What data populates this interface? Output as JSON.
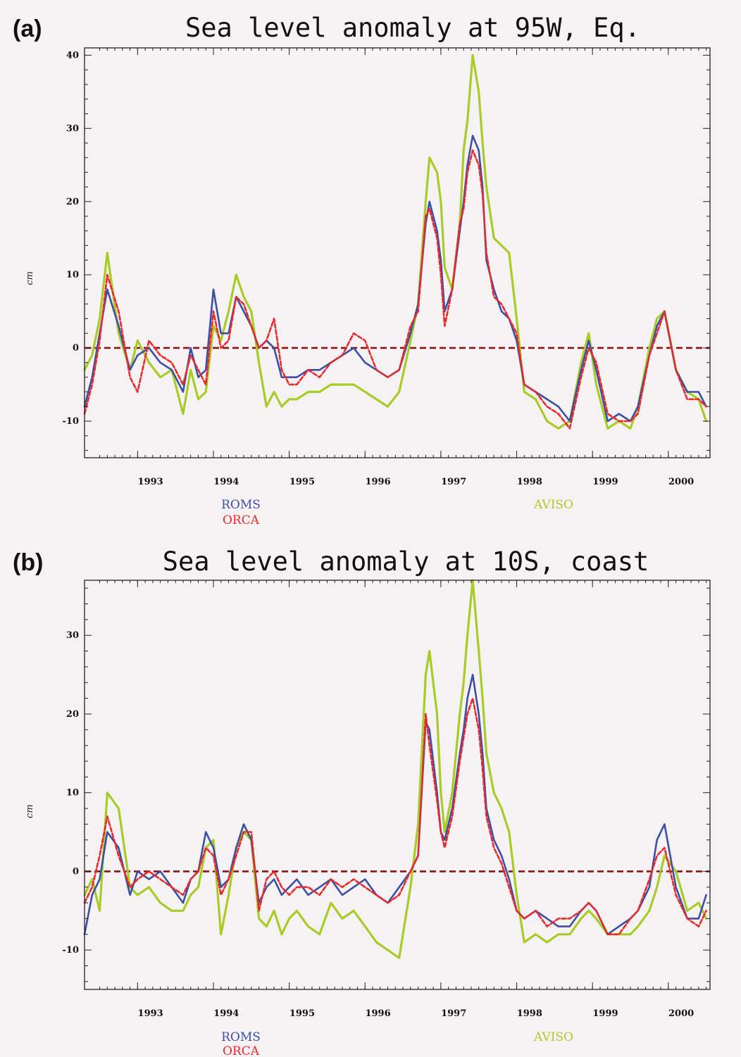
{
  "chart_data": [
    {
      "type": "line",
      "panel_label": "(a)",
      "title": "Sea level anomaly at 95W, Eq.",
      "xlabel": "",
      "ylabel": "cm",
      "xlim": [
        1992.3,
        2000.55
      ],
      "ylim": [
        -15,
        41
      ],
      "yticks": [
        -10,
        0,
        10,
        20,
        30,
        40
      ],
      "xticks": [
        1993,
        1994,
        1995,
        1996,
        1997,
        1998,
        1999,
        2000
      ],
      "grid": false,
      "legend_left": [
        "ROMS",
        "ORCA"
      ],
      "legend_right": [
        "AVISO"
      ],
      "reference_line": 0,
      "series": [
        {
          "name": "AVISO",
          "color": "#a8cc26",
          "x": [
            1992.3,
            1992.4,
            1992.5,
            1992.6,
            1992.75,
            1992.9,
            1993.0,
            1993.15,
            1993.3,
            1993.45,
            1993.6,
            1993.7,
            1993.8,
            1993.9,
            1994.0,
            1994.1,
            1994.2,
            1994.3,
            1994.4,
            1994.5,
            1994.6,
            1994.7,
            1994.8,
            1994.9,
            1995.0,
            1995.1,
            1995.25,
            1995.4,
            1995.55,
            1995.7,
            1995.85,
            1996.0,
            1996.15,
            1996.3,
            1996.45,
            1996.6,
            1996.7,
            1996.8,
            1996.85,
            1996.95,
            1997.0,
            1997.05,
            1997.15,
            1997.25,
            1997.3,
            1997.35,
            1997.42,
            1997.5,
            1997.55,
            1997.6,
            1997.7,
            1997.8,
            1997.9,
            1998.0,
            1998.1,
            1998.25,
            1998.4,
            1998.55,
            1998.7,
            1998.85,
            1998.95,
            1999.05,
            1999.2,
            1999.35,
            1999.5,
            1999.6,
            1999.75,
            1999.85,
            1999.95,
            2000.1,
            2000.25,
            2000.4,
            2000.5
          ],
          "values": [
            -3,
            -1,
            4,
            13,
            2,
            -3,
            1,
            -2,
            -4,
            -3,
            -9,
            -3,
            -7,
            -6,
            3,
            1,
            5,
            10,
            7,
            5,
            -2,
            -8,
            -6,
            -8,
            -7,
            -7,
            -6,
            -6,
            -5,
            -5,
            -5,
            -6,
            -7,
            -8,
            -6,
            1,
            6,
            20,
            26,
            24,
            20,
            11,
            8,
            17,
            27,
            31,
            40,
            35,
            28,
            22,
            15,
            14,
            13,
            4,
            -6,
            -7,
            -10,
            -11,
            -10,
            -2,
            2,
            -5,
            -11,
            -10,
            -11,
            -8,
            0,
            4,
            5,
            -3,
            -6,
            -7,
            -10
          ]
        },
        {
          "name": "ROMS",
          "color": "#3a4fa6",
          "x": [
            1992.3,
            1992.4,
            1992.5,
            1992.6,
            1992.75,
            1992.9,
            1993.0,
            1993.15,
            1993.3,
            1993.45,
            1993.6,
            1993.7,
            1993.8,
            1993.9,
            1994.0,
            1994.1,
            1994.2,
            1994.3,
            1994.4,
            1994.5,
            1994.6,
            1994.7,
            1994.8,
            1994.9,
            1995.0,
            1995.1,
            1995.25,
            1995.4,
            1995.55,
            1995.7,
            1995.85,
            1996.0,
            1996.15,
            1996.3,
            1996.45,
            1996.6,
            1996.7,
            1996.8,
            1996.85,
            1996.95,
            1997.0,
            1997.05,
            1997.15,
            1997.25,
            1997.3,
            1997.35,
            1997.42,
            1997.5,
            1997.55,
            1997.6,
            1997.7,
            1997.8,
            1997.9,
            1998.0,
            1998.1,
            1998.25,
            1998.4,
            1998.55,
            1998.7,
            1998.85,
            1998.95,
            1999.05,
            1999.2,
            1999.35,
            1999.5,
            1999.6,
            1999.75,
            1999.85,
            1999.95,
            2000.1,
            2000.25,
            2000.4,
            2000.5
          ],
          "values": [
            -8,
            -4,
            2,
            8,
            3,
            -3,
            -1,
            0,
            -2,
            -3,
            -6,
            0,
            -4,
            -3,
            8,
            2,
            2,
            7,
            5,
            3,
            0,
            1,
            0,
            -4,
            -4,
            -4,
            -3,
            -3,
            -2,
            -1,
            0,
            -2,
            -3,
            -4,
            -3,
            2,
            6,
            17,
            20,
            16,
            12,
            5,
            8,
            16,
            20,
            25,
            29,
            27,
            22,
            12,
            8,
            5,
            4,
            1,
            -5,
            -6,
            -7,
            -8,
            -10,
            -3,
            1,
            -3,
            -10,
            -9,
            -10,
            -8,
            -1,
            3,
            5,
            -3,
            -6,
            -6,
            -8
          ]
        },
        {
          "name": "ORCA",
          "color": "#e82a2a",
          "x": [
            1992.3,
            1992.4,
            1992.5,
            1992.6,
            1992.75,
            1992.9,
            1993.0,
            1993.15,
            1993.3,
            1993.45,
            1993.6,
            1993.7,
            1993.8,
            1993.9,
            1994.0,
            1994.1,
            1994.2,
            1994.3,
            1994.4,
            1994.5,
            1994.6,
            1994.7,
            1994.8,
            1994.9,
            1995.0,
            1995.1,
            1995.25,
            1995.4,
            1995.55,
            1995.7,
            1995.85,
            1996.0,
            1996.15,
            1996.3,
            1996.45,
            1996.6,
            1996.7,
            1996.8,
            1996.85,
            1996.95,
            1997.0,
            1997.05,
            1997.15,
            1997.25,
            1997.3,
            1997.35,
            1997.42,
            1997.5,
            1997.55,
            1997.6,
            1997.7,
            1997.8,
            1997.9,
            1998.0,
            1998.1,
            1998.25,
            1998.4,
            1998.55,
            1998.7,
            1998.85,
            1998.95,
            1999.05,
            1999.2,
            1999.35,
            1999.5,
            1999.6,
            1999.75,
            1999.85,
            1999.95,
            2000.1,
            2000.25,
            2000.4,
            2000.5
          ],
          "values": [
            -9,
            -5,
            1,
            10,
            5,
            -4,
            -6,
            1,
            -1,
            -2,
            -5,
            -1,
            -3,
            -5,
            5,
            0,
            1,
            7,
            6,
            3,
            0,
            1,
            4,
            -3,
            -5,
            -5,
            -3,
            -4,
            -2,
            -1,
            2,
            1,
            -3,
            -4,
            -3,
            3,
            5,
            18,
            19,
            15,
            10,
            3,
            8,
            17,
            19,
            24,
            27,
            25,
            21,
            13,
            7,
            6,
            4,
            2,
            -5,
            -6,
            -8,
            -9,
            -11,
            -4,
            0,
            -2,
            -9,
            -10,
            -10,
            -9,
            -1,
            2,
            5,
            -3,
            -7,
            -7,
            -8
          ]
        }
      ]
    },
    {
      "type": "line",
      "panel_label": "(b)",
      "title": "Sea level anomaly at 10S, coast",
      "xlabel": "",
      "ylabel": "cm",
      "xlim": [
        1992.3,
        2000.55
      ],
      "ylim": [
        -15,
        37
      ],
      "yticks": [
        -10,
        0,
        10,
        20,
        30
      ],
      "xticks": [
        1993,
        1994,
        1995,
        1996,
        1997,
        1998,
        1999,
        2000
      ],
      "grid": false,
      "legend_left": [
        "ROMS",
        "ORCA"
      ],
      "legend_right": [
        "AVISO"
      ],
      "reference_line": 0,
      "series": [
        {
          "name": "AVISO",
          "color": "#a8cc26",
          "x": [
            1992.3,
            1992.4,
            1992.5,
            1992.6,
            1992.75,
            1992.9,
            1993.0,
            1993.15,
            1993.3,
            1993.45,
            1993.6,
            1993.7,
            1993.8,
            1993.9,
            1994.0,
            1994.1,
            1994.2,
            1994.3,
            1994.4,
            1994.5,
            1994.6,
            1994.7,
            1994.8,
            1994.9,
            1995.0,
            1995.1,
            1995.25,
            1995.4,
            1995.55,
            1995.7,
            1995.85,
            1996.0,
            1996.15,
            1996.3,
            1996.45,
            1996.6,
            1996.7,
            1996.8,
            1996.85,
            1996.95,
            1997.0,
            1997.05,
            1997.15,
            1997.25,
            1997.3,
            1997.35,
            1997.42,
            1997.5,
            1997.55,
            1997.6,
            1997.7,
            1997.8,
            1997.9,
            1998.0,
            1998.1,
            1998.25,
            1998.4,
            1998.55,
            1998.7,
            1998.85,
            1998.95,
            1999.05,
            1999.2,
            1999.35,
            1999.5,
            1999.6,
            1999.75,
            1999.85,
            1999.95,
            2000.1,
            2000.25,
            2000.4,
            2000.5
          ],
          "values": [
            -3,
            -1,
            -5,
            10,
            8,
            -2,
            -3,
            -2,
            -4,
            -5,
            -5,
            -3,
            -2,
            3,
            4,
            -8,
            -3,
            3,
            5,
            4,
            -6,
            -7,
            -5,
            -8,
            -6,
            -5,
            -7,
            -8,
            -4,
            -6,
            -5,
            -7,
            -9,
            -10,
            -11,
            -2,
            6,
            25,
            28,
            20,
            10,
            5,
            10,
            20,
            24,
            30,
            37,
            28,
            22,
            15,
            10,
            8,
            5,
            -3,
            -9,
            -8,
            -9,
            -8,
            -8,
            -6,
            -5,
            -6,
            -8,
            -8,
            -8,
            -7,
            -5,
            -2,
            2,
            0,
            -5,
            -4,
            -6
          ]
        },
        {
          "name": "ROMS",
          "color": "#3a4fa6",
          "x": [
            1992.3,
            1992.4,
            1992.5,
            1992.6,
            1992.75,
            1992.9,
            1993.0,
            1993.15,
            1993.3,
            1993.45,
            1993.6,
            1993.7,
            1993.8,
            1993.9,
            1994.0,
            1994.1,
            1994.2,
            1994.3,
            1994.4,
            1994.5,
            1994.6,
            1994.7,
            1994.8,
            1994.9,
            1995.0,
            1995.1,
            1995.25,
            1995.4,
            1995.55,
            1995.7,
            1995.85,
            1996.0,
            1996.15,
            1996.3,
            1996.45,
            1996.6,
            1996.7,
            1996.8,
            1996.85,
            1996.95,
            1997.0,
            1997.05,
            1997.15,
            1997.25,
            1997.3,
            1997.35,
            1997.42,
            1997.5,
            1997.55,
            1997.6,
            1997.7,
            1997.8,
            1997.9,
            1998.0,
            1998.1,
            1998.25,
            1998.4,
            1998.55,
            1998.7,
            1998.85,
            1998.95,
            1999.05,
            1999.2,
            1999.35,
            1999.5,
            1999.6,
            1999.75,
            1999.85,
            1999.95,
            2000.1,
            2000.25,
            2000.4,
            2000.5
          ],
          "values": [
            -8,
            -3,
            -1,
            5,
            3,
            -3,
            0,
            -1,
            0,
            -2,
            -4,
            -1,
            0,
            5,
            3,
            -2,
            -1,
            3,
            6,
            4,
            -4,
            -2,
            -1,
            -3,
            -2,
            -1,
            -3,
            -2,
            -1,
            -3,
            -2,
            -1,
            -3,
            -4,
            -2,
            0,
            2,
            19,
            18,
            10,
            5,
            4,
            8,
            15,
            18,
            22,
            25,
            20,
            15,
            8,
            4,
            2,
            -1,
            -5,
            -6,
            -5,
            -6,
            -7,
            -7,
            -5,
            -4,
            -5,
            -8,
            -7,
            -6,
            -5,
            -2,
            4,
            6,
            -2,
            -6,
            -6,
            -3
          ]
        },
        {
          "name": "ORCA",
          "color": "#e82a2a",
          "x": [
            1992.3,
            1992.4,
            1992.5,
            1992.6,
            1992.75,
            1992.9,
            1993.0,
            1993.15,
            1993.3,
            1993.45,
            1993.6,
            1993.7,
            1993.8,
            1993.9,
            1994.0,
            1994.1,
            1994.2,
            1994.3,
            1994.4,
            1994.5,
            1994.6,
            1994.7,
            1994.8,
            1994.9,
            1995.0,
            1995.1,
            1995.25,
            1995.4,
            1995.55,
            1995.7,
            1995.85,
            1996.0,
            1996.15,
            1996.3,
            1996.45,
            1996.6,
            1996.7,
            1996.8,
            1996.85,
            1996.95,
            1997.0,
            1997.05,
            1997.15,
            1997.25,
            1997.3,
            1997.35,
            1997.42,
            1997.5,
            1997.55,
            1997.6,
            1997.7,
            1997.8,
            1997.9,
            1998.0,
            1998.1,
            1998.25,
            1998.4,
            1998.55,
            1998.7,
            1998.85,
            1998.95,
            1999.05,
            1999.2,
            1999.35,
            1999.5,
            1999.6,
            1999.75,
            1999.85,
            1999.95,
            2000.1,
            2000.25,
            2000.4,
            2000.5
          ],
          "values": [
            -4,
            -2,
            2,
            7,
            2,
            -2,
            -1,
            0,
            -1,
            -2,
            -3,
            -1,
            0,
            3,
            2,
            -3,
            -1,
            2,
            5,
            5,
            -5,
            -1,
            0,
            -2,
            -3,
            -2,
            -2,
            -3,
            -1,
            -2,
            -1,
            -2,
            -3,
            -4,
            -3,
            0,
            2,
            20,
            16,
            9,
            5,
            3,
            7,
            14,
            17,
            20,
            22,
            18,
            13,
            7,
            3,
            1,
            -2,
            -5,
            -6,
            -5,
            -7,
            -6,
            -6,
            -5,
            -4,
            -5,
            -8,
            -8,
            -6,
            -5,
            -1,
            2,
            3,
            -3,
            -6,
            -7,
            -5
          ]
        }
      ]
    }
  ]
}
